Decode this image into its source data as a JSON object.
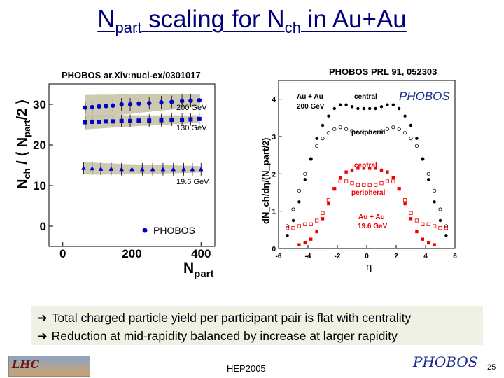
{
  "title": {
    "prefix": "N",
    "sub1": "part",
    "middle": " scaling for N",
    "sub2": "ch",
    "suffix": " in Au+Au"
  },
  "left_plot": {
    "reference": "PHOBOS ar.Xiv:nucl-ex/0301017",
    "ylabel": "N_ch / ⟨N_part/2⟩",
    "ylabel_main": "N",
    "ylabel_sub1": "ch",
    "ylabel_mid": " / ⟨ N",
    "ylabel_sub2": "part",
    "ylabel_end": "/2 ⟩",
    "xlabel_main": "N",
    "xlabel_sub": "part",
    "legend": "PHOBOS",
    "y_ticks": [
      "0",
      "10",
      "20",
      "30"
    ],
    "x_ticks": [
      "0",
      "200",
      "400"
    ]
  },
  "right_plot": {
    "reference": "PHOBOS PRL 91, 052303",
    "ylabel": "dN_ch/dη/(N_part/2)",
    "xlabel": "η",
    "y_ticks": [
      "0",
      "1",
      "2",
      "3",
      "4"
    ],
    "x_ticks": [
      "-6",
      "-4",
      "-2",
      "0",
      "2",
      "4",
      "6"
    ],
    "label_auau": "Au + Au",
    "label_200": "200 GeV",
    "label_central_black": "central",
    "label_peripheral_black": "peripheral",
    "label_central_red": "central",
    "label_peripheral_red": "peripheral",
    "label_auau_red": "Au + Au",
    "label_195": "19.6 GeV",
    "logo": "PHOBOS"
  },
  "bullets": [
    "Total charged particle yield per participant pair is flat with centrality",
    "Reduction at mid-rapidity balanced by increase at larger rapidity"
  ],
  "footer": {
    "conference": "HEP2005",
    "page": "25",
    "lhc_logo": "LHC",
    "logo": "PHOBOS"
  },
  "colors": {
    "title": "#00007a",
    "blue": "#0000cc",
    "band": "#c8c4a8",
    "red": "#ee0000"
  },
  "chart_data": [
    {
      "type": "scatter",
      "title": "",
      "xlabel": "N_part",
      "ylabel": "N_ch / <N_part/2>",
      "xlim": [
        -40,
        440
      ],
      "ylim": [
        -5,
        35
      ],
      "series": [
        {
          "name": "200 GeV",
          "x": [
            65,
            85,
            105,
            125,
            145,
            170,
            195,
            220,
            250,
            285,
            315,
            345,
            370,
            395
          ],
          "values": [
            29.2,
            29.3,
            29.5,
            29.6,
            29.7,
            30.0,
            30.0,
            30.2,
            30.3,
            30.5,
            30.6,
            30.8,
            30.9,
            31.0
          ]
        },
        {
          "name": "130 GeV",
          "x": [
            65,
            85,
            105,
            125,
            145,
            170,
            195,
            220,
            250,
            285,
            315,
            345,
            370,
            395
          ],
          "values": [
            25.6,
            25.7,
            25.7,
            25.8,
            25.8,
            25.9,
            25.9,
            26.0,
            26.0,
            26.1,
            26.2,
            26.2,
            26.3,
            26.4
          ]
        },
        {
          "name": "19.6 GeV",
          "x": [
            60,
            85,
            110,
            140,
            170,
            200,
            230,
            260,
            290,
            320,
            350,
            375,
            400
          ],
          "values": [
            14.3,
            14.2,
            14.1,
            14.1,
            14.0,
            14.0,
            14.0,
            14.0,
            14.0,
            14.0,
            14.0,
            14.0,
            14.0
          ]
        }
      ]
    },
    {
      "type": "scatter",
      "xlabel": "η",
      "ylabel": "dN_ch/dη/(N_part/2)",
      "xlim": [
        -6,
        6
      ],
      "ylim": [
        0,
        4.5
      ],
      "series": [
        {
          "name": "central 200 GeV",
          "x": [
            -5.4,
            -5.0,
            -4.6,
            -4.2,
            -3.8,
            -3.4,
            -3.0,
            -2.6,
            -2.2,
            -1.8,
            -1.4,
            -1.0,
            -0.6,
            -0.2,
            0.2,
            0.6,
            1.0,
            1.4,
            1.8,
            2.2,
            2.6,
            3.0,
            3.4,
            3.8,
            4.2,
            4.6,
            5.0,
            5.4
          ],
          "values": [
            0.35,
            0.75,
            1.25,
            1.85,
            2.4,
            2.95,
            3.3,
            3.55,
            3.75,
            3.85,
            3.85,
            3.8,
            3.75,
            3.75,
            3.75,
            3.75,
            3.8,
            3.85,
            3.85,
            3.75,
            3.55,
            3.3,
            2.95,
            2.4,
            1.85,
            1.25,
            0.75,
            0.35
          ]
        },
        {
          "name": "peripheral 200 GeV",
          "x": [
            -5.4,
            -5.0,
            -4.6,
            -4.2,
            -3.8,
            -3.4,
            -3.0,
            -2.6,
            -2.2,
            -1.8,
            -1.4,
            -1.0,
            -0.6,
            -0.2,
            0.2,
            0.6,
            1.0,
            1.4,
            1.8,
            2.2,
            2.6,
            3.0,
            3.4,
            3.8,
            4.2,
            4.6,
            5.0,
            5.4
          ],
          "values": [
            0.6,
            1.05,
            1.55,
            2.0,
            2.4,
            2.75,
            2.95,
            3.1,
            3.2,
            3.25,
            3.2,
            3.15,
            3.1,
            3.1,
            3.1,
            3.1,
            3.15,
            3.2,
            3.25,
            3.2,
            3.1,
            2.95,
            2.75,
            2.4,
            2.0,
            1.55,
            1.05,
            0.6
          ]
        },
        {
          "name": "central 19.6 GeV",
          "x": [
            -4.6,
            -4.2,
            -3.8,
            -3.4,
            -3.0,
            -2.6,
            -2.2,
            -1.8,
            -1.4,
            -1.0,
            -0.6,
            -0.2,
            0.2,
            0.6,
            1.0,
            1.4,
            1.8,
            2.2,
            2.6,
            3.0,
            3.4,
            3.8,
            4.2,
            4.6
          ],
          "values": [
            0.1,
            0.15,
            0.25,
            0.45,
            0.8,
            1.2,
            1.6,
            1.9,
            2.05,
            2.1,
            2.15,
            2.15,
            2.15,
            2.15,
            2.1,
            2.05,
            1.9,
            1.6,
            1.2,
            0.8,
            0.45,
            0.25,
            0.15,
            0.1
          ]
        },
        {
          "name": "peripheral 19.6 GeV",
          "x": [
            -5.4,
            -5.0,
            -4.6,
            -4.2,
            -3.8,
            -3.4,
            -3.0,
            -2.6,
            -2.2,
            -1.8,
            -1.4,
            -1.0,
            -0.6,
            -0.2,
            0.2,
            0.6,
            1.0,
            1.4,
            1.8,
            2.2,
            2.6,
            3.0,
            3.4,
            3.8,
            4.2,
            4.6,
            5.0,
            5.4
          ],
          "values": [
            0.55,
            0.55,
            0.6,
            0.65,
            0.65,
            0.75,
            0.95,
            1.3,
            1.6,
            1.8,
            1.8,
            1.75,
            1.7,
            1.7,
            1.7,
            1.7,
            1.75,
            1.8,
            1.8,
            1.6,
            1.3,
            0.95,
            0.75,
            0.65,
            0.65,
            0.6,
            0.55,
            0.55
          ]
        }
      ]
    }
  ]
}
